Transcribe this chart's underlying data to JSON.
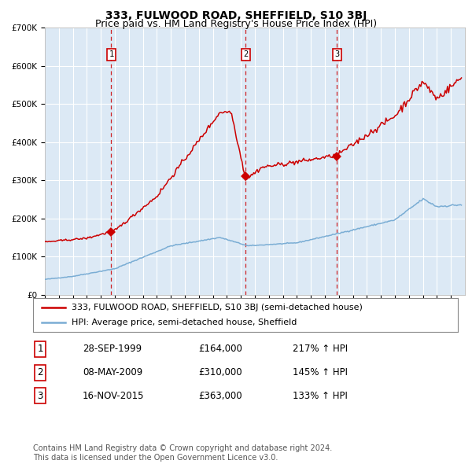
{
  "title": "333, FULWOOD ROAD, SHEFFIELD, S10 3BJ",
  "subtitle": "Price paid vs. HM Land Registry's House Price Index (HPI)",
  "background_color": "#ffffff",
  "plot_bg_color": "#dce9f5",
  "red_line_color": "#cc0000",
  "blue_line_color": "#7aadd4",
  "grid_color": "#ffffff",
  "ylim": [
    0,
    700000
  ],
  "yticks": [
    0,
    100000,
    200000,
    300000,
    400000,
    500000,
    600000,
    700000
  ],
  "ytick_labels": [
    "£0",
    "£100K",
    "£200K",
    "£300K",
    "£400K",
    "£500K",
    "£600K",
    "£700K"
  ],
  "xlim_start": 1995.0,
  "xlim_end": 2025.0,
  "transaction_dates": [
    1999.74,
    2009.35,
    2015.87
  ],
  "transaction_prices": [
    164000,
    310000,
    363000
  ],
  "transaction_labels": [
    "1",
    "2",
    "3"
  ],
  "legend_red": "333, FULWOOD ROAD, SHEFFIELD, S10 3BJ (semi-detached house)",
  "legend_blue": "HPI: Average price, semi-detached house, Sheffield",
  "table_rows": [
    [
      "1",
      "28-SEP-1999",
      "£164,000",
      "217% ↑ HPI"
    ],
    [
      "2",
      "08-MAY-2009",
      "£310,000",
      "145% ↑ HPI"
    ],
    [
      "3",
      "16-NOV-2015",
      "£363,000",
      "133% ↑ HPI"
    ]
  ],
  "footer": "Contains HM Land Registry data © Crown copyright and database right 2024.\nThis data is licensed under the Open Government Licence v3.0.",
  "title_fontsize": 10,
  "subtitle_fontsize": 9,
  "tick_fontsize": 7.5,
  "legend_fontsize": 8,
  "table_fontsize": 8.5,
  "footer_fontsize": 7
}
